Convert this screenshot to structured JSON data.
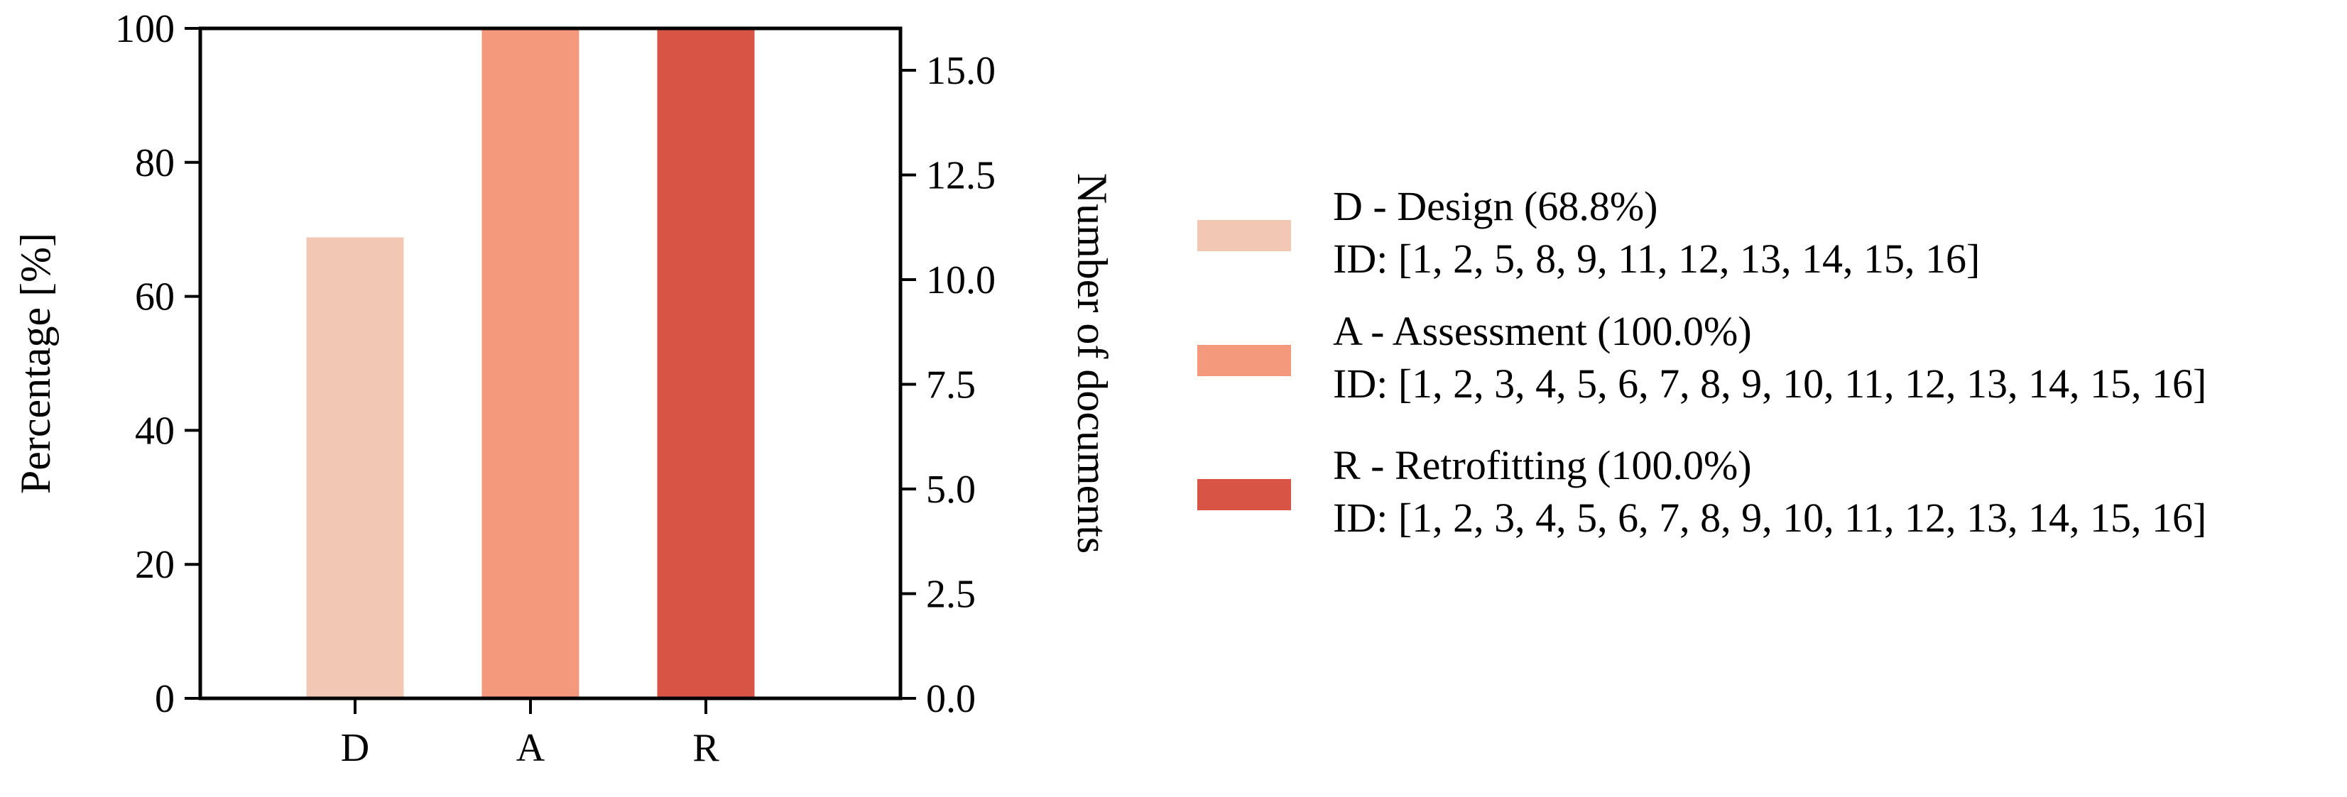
{
  "chart_data": {
    "type": "bar",
    "categories": [
      "D",
      "A",
      "R"
    ],
    "values": [
      68.8,
      100.0,
      100.0
    ],
    "colors": [
      "#f2c8b4",
      "#f4997b",
      "#d85545"
    ],
    "ylabel": "Percentage [%]",
    "ylim": [
      0,
      100
    ],
    "yticks": [
      "0",
      "20",
      "40",
      "60",
      "80",
      "100"
    ],
    "y2label": "Number of documents",
    "y2lim": [
      0,
      16
    ],
    "y2ticks": [
      "0.0",
      "2.5",
      "5.0",
      "7.5",
      "10.0",
      "12.5",
      "15.0"
    ],
    "grid": false,
    "legend_position": "right",
    "legend": [
      {
        "label": "D - Design (68.8%)",
        "ids": "ID: [1, 2, 5, 8, 9, 11, 12, 13, 14, 15, 16]",
        "color": "#f2c8b4"
      },
      {
        "label": "A - Assessment (100.0%)",
        "ids": "ID: [1, 2, 3, 4, 5, 6, 7, 8, 9, 10, 11, 12, 13, 14, 15, 16]",
        "color": "#f4997b"
      },
      {
        "label": "R - Retrofitting (100.0%)",
        "ids": "ID: [1, 2, 3, 4, 5, 6, 7, 8, 9, 10, 11, 12, 13, 14, 15, 16]",
        "color": "#d85545"
      }
    ]
  }
}
